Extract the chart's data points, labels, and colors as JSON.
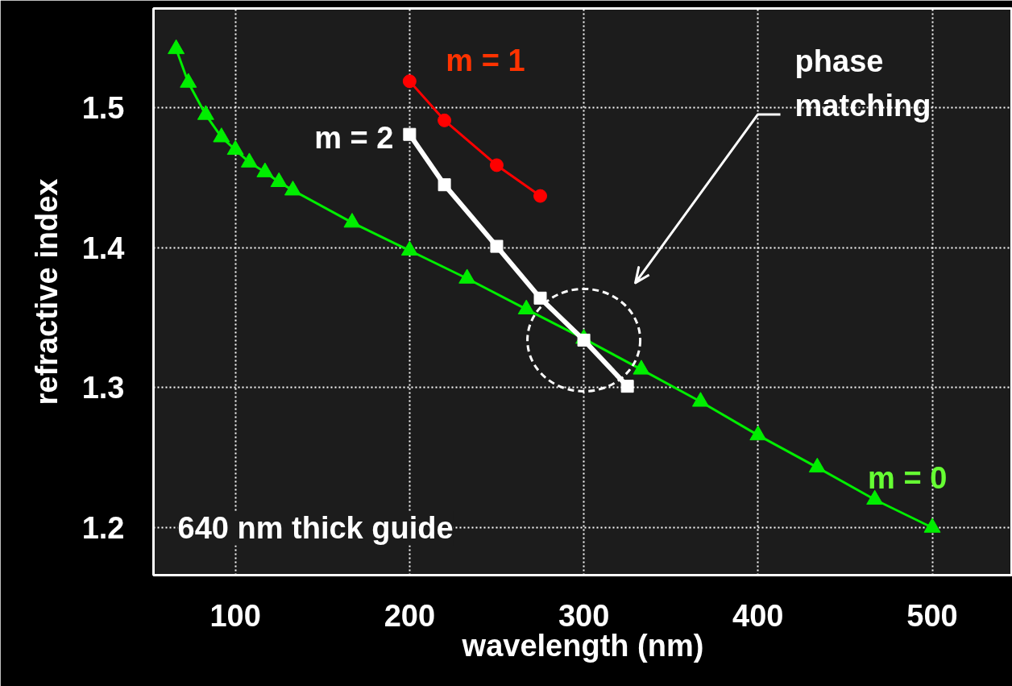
{
  "chart_data": {
    "type": "line",
    "xlabel": "wavelength (nm)",
    "ylabel": "refractive index",
    "xlim": [
      53,
      546
    ],
    "ylim": [
      1.166,
      1.571
    ],
    "xticks": [
      100,
      200,
      300,
      400,
      500
    ],
    "yticks": [
      1.2,
      1.3,
      1.4,
      1.5
    ],
    "grid": true,
    "series": [
      {
        "name": "m = 0",
        "color": "#00ee00",
        "marker": "triangle",
        "x": [
          66,
          73,
          83,
          92,
          100,
          108,
          117,
          125,
          133,
          167,
          200,
          233,
          267,
          300,
          333,
          367,
          400,
          434,
          467,
          500
        ],
        "values": [
          1.542,
          1.518,
          1.495,
          1.479,
          1.47,
          1.461,
          1.454,
          1.447,
          1.441,
          1.418,
          1.398,
          1.378,
          1.356,
          1.335,
          1.313,
          1.29,
          1.266,
          1.243,
          1.22,
          1.2
        ]
      },
      {
        "name": "m = 1",
        "color": "#ff0000",
        "marker": "circle",
        "x": [
          200,
          220,
          250,
          275
        ],
        "values": [
          1.519,
          1.491,
          1.459,
          1.437
        ]
      },
      {
        "name": "m = 2",
        "color": "#ffffff",
        "marker": "square",
        "x": [
          200,
          220,
          250,
          275,
          300,
          325
        ],
        "values": [
          1.481,
          1.445,
          1.401,
          1.364,
          1.334,
          1.301
        ]
      }
    ],
    "annotations": [
      "phase matching",
      "640 nm thick guide"
    ]
  }
}
